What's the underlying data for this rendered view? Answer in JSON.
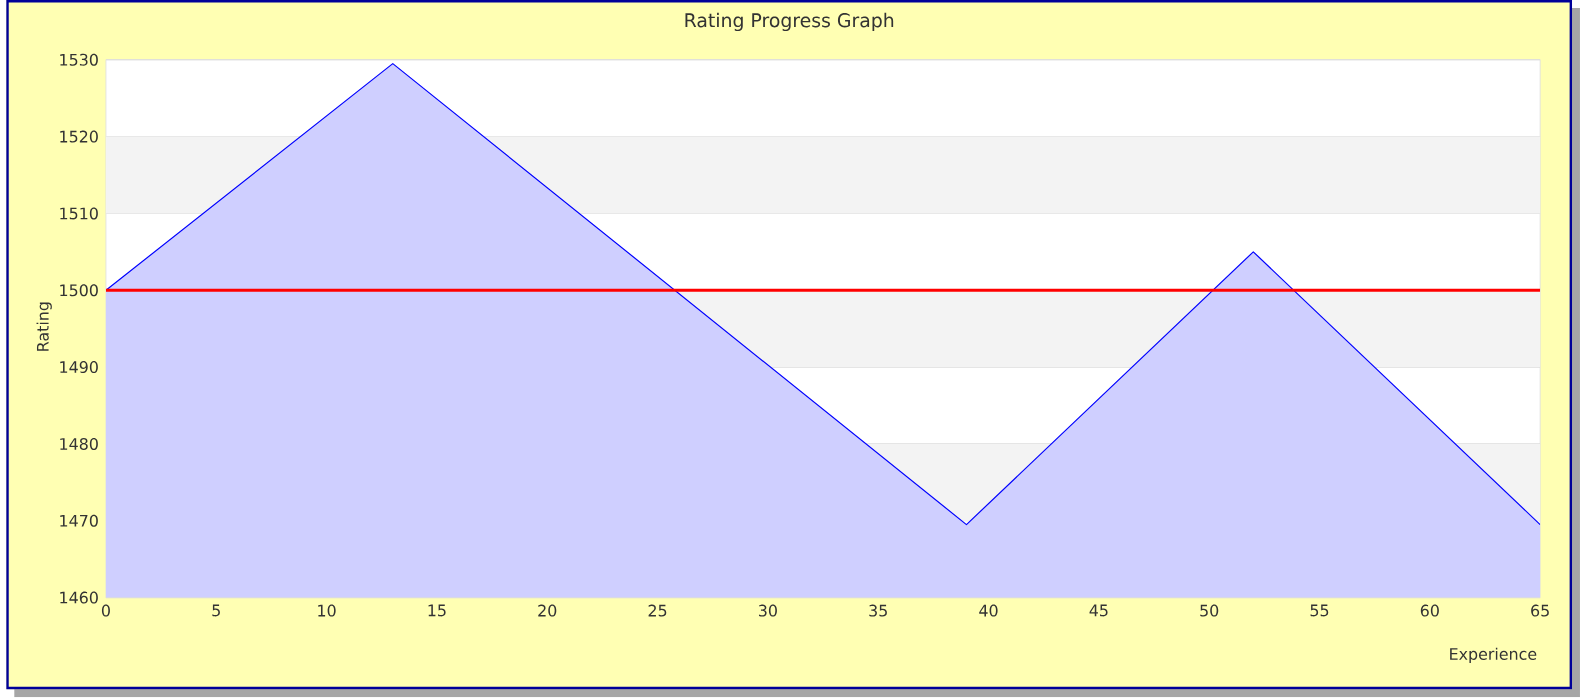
{
  "chart_data": {
    "type": "area",
    "title": "Rating Progress Graph",
    "xlabel": "Experience",
    "ylabel": "Rating",
    "x": [
      0,
      13,
      39,
      52,
      65
    ],
    "series": [
      {
        "color": "#0000ff",
        "values": [
          1500,
          1529.5,
          1469.5,
          1505,
          1469.5
        ]
      }
    ],
    "xlim": [
      0,
      65
    ],
    "xticks": [
      0,
      5,
      10,
      15,
      20,
      25,
      30,
      35,
      40,
      45,
      50,
      55,
      60,
      65
    ],
    "ylim": [
      1460,
      1530
    ],
    "yticks": [
      1460,
      1470,
      1480,
      1490,
      1500,
      1510,
      1520,
      1530
    ],
    "grid": "y",
    "marker": "none",
    "line_style": "solid",
    "bands": [
      {
        "axis": "y",
        "from": 1470,
        "to": 1480,
        "color": "#f3f3f3"
      },
      {
        "axis": "y",
        "from": 1490,
        "to": 1500,
        "color": "#f3f3f3"
      },
      {
        "axis": "y",
        "from": 1510,
        "to": 1520,
        "color": "#f3f3f3"
      }
    ],
    "ref_lines": [
      {
        "axis": "y",
        "value": 1500,
        "color": "#ff0000"
      }
    ]
  }
}
